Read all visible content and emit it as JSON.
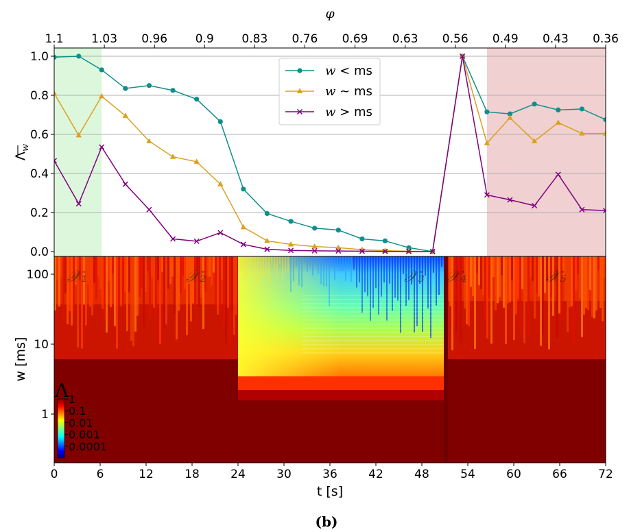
{
  "chart_data": [
    {
      "type": "line",
      "ylabel": "Λ̄_w",
      "ylabel_parts": {
        "main": "Λ",
        "sub": "w"
      },
      "top_axis_label": "φ",
      "top_ticks": [
        "1.1",
        "1.03",
        "0.96",
        "0.9",
        "0.83",
        "0.76",
        "0.69",
        "0.63",
        "0.56",
        "0.49",
        "0.43",
        "0.36"
      ],
      "yticks": [
        "0.0",
        "0.2",
        "0.4",
        "0.6",
        "0.8",
        "1.0"
      ],
      "ylim": [
        -0.02,
        1.02
      ],
      "xlim": [
        0,
        72
      ],
      "grid": "horizontal",
      "legend_position": "top-center",
      "shaded_regions": [
        {
          "x": [
            0,
            6.2
          ],
          "color": "#dcf7dc"
        },
        {
          "x": [
            56.5,
            72
          ],
          "color": "#f0d0d0"
        }
      ],
      "x": [
        0,
        3.2,
        6.2,
        9.3,
        12.4,
        15.5,
        18.6,
        21.7,
        24.7,
        27.8,
        30.9,
        34,
        37.1,
        40.2,
        43.2,
        46.3,
        49.4,
        53.3,
        56.5,
        59.5,
        62.7,
        65.8,
        68.9,
        72
      ],
      "series": [
        {
          "name": "w < ms",
          "color": "#0f8f8c",
          "marker": "circle",
          "values": [
            0.995,
            1.0,
            0.93,
            0.835,
            0.85,
            0.825,
            0.78,
            0.665,
            0.32,
            0.195,
            0.155,
            0.12,
            0.11,
            0.065,
            0.055,
            0.02,
            0.0,
            1.0,
            0.715,
            0.705,
            0.755,
            0.725,
            0.73,
            0.675
          ]
        },
        {
          "name": "w ~ ms",
          "color": "#dba020",
          "marker": "triangle",
          "values": [
            0.81,
            0.595,
            0.795,
            0.695,
            0.565,
            0.485,
            0.46,
            0.345,
            0.125,
            0.055,
            0.037,
            0.026,
            0.02,
            0.01,
            0.005,
            0.002,
            0.0,
            1.0,
            0.555,
            0.685,
            0.565,
            0.66,
            0.605,
            0.605
          ]
        },
        {
          "name": "w > ms",
          "color": "#800080",
          "marker": "x",
          "values": [
            0.465,
            0.245,
            0.535,
            0.345,
            0.215,
            0.065,
            0.053,
            0.097,
            0.037,
            0.012,
            0.006,
            0.004,
            0.003,
            0.002,
            0.001,
            0.0005,
            0.0,
            1.0,
            0.29,
            0.265,
            0.235,
            0.395,
            0.215,
            0.21
          ]
        }
      ],
      "legend": {
        "series_symbol": "w",
        "relations": [
          "<",
          "~",
          ">"
        ],
        "unit": "ms"
      }
    },
    {
      "type": "heatmap",
      "xlabel": "t [s]",
      "ylabel": "w [ms]",
      "xlim": [
        0,
        72
      ],
      "xticks": [
        "0",
        "6",
        "12",
        "18",
        "24",
        "30",
        "36",
        "42",
        "48",
        "54",
        "60",
        "66",
        "72"
      ],
      "yticks": [
        "1",
        "10",
        "100"
      ],
      "yscale": "log",
      "region_labels": [
        "𝒳₁",
        "𝒳₂",
        "𝒳₃",
        "𝒳₄",
        "𝒳₅"
      ],
      "region_label_t": [
        3,
        18.5,
        47,
        52.5,
        65.5
      ],
      "colorbar": {
        "label": "Λ",
        "ticks": [
          "1",
          "0.1",
          "0.01",
          "0.001",
          "0.0001"
        ],
        "colormap": "jet",
        "scale": "log"
      },
      "segments": [
        {
          "t": [
            0,
            24
          ],
          "description_level": "high"
        },
        {
          "t": [
            24,
            51
          ],
          "description_level": "low"
        },
        {
          "t": [
            51,
            72
          ],
          "description_level": "high"
        }
      ]
    }
  ],
  "caption": "(b)"
}
